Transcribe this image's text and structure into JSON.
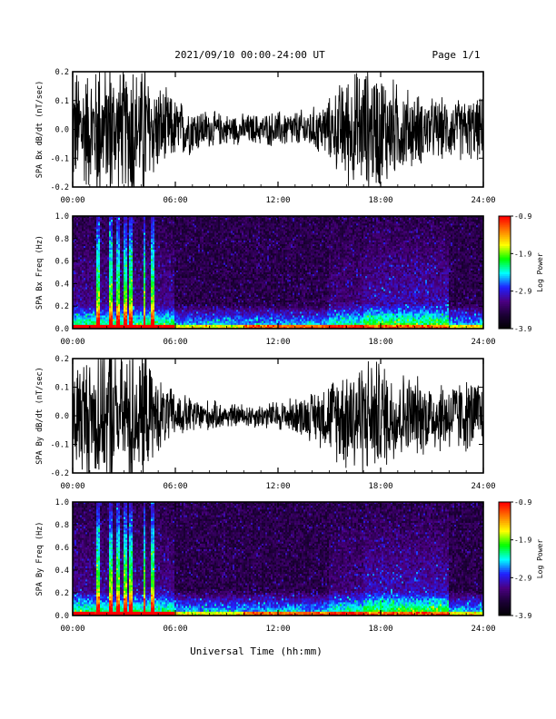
{
  "header": {
    "title": "2021/09/10  00:00-24:00 UT",
    "page": "Page 1/1"
  },
  "footer": {
    "xlabel": "Universal Time (hh:mm)"
  },
  "colors": {
    "trace": "#000000",
    "colormap": [
      "#000000",
      "#1a0033",
      "#4b0082",
      "#2020ff",
      "#00ffff",
      "#00ff00",
      "#ffff00",
      "#ff8000",
      "#ff0000"
    ]
  },
  "chart_data": [
    {
      "type": "line",
      "ylabel": "SPA Bx dB/dt (nT/sec)",
      "xlim": [
        0,
        24
      ],
      "ylim": [
        -0.2,
        0.2
      ],
      "x_tick_labels": [
        "00:00",
        "06:00",
        "12:00",
        "18:00",
        "24:00"
      ],
      "y_tick_labels": [
        "0.2",
        "0.1",
        "0.0",
        "-0.1",
        "-0.2"
      ],
      "series": [
        {
          "x_hours": [
            0,
            1,
            2,
            3,
            3.5,
            4,
            5,
            6,
            7,
            8,
            9,
            10,
            11,
            12,
            13,
            14,
            15,
            16,
            17,
            18,
            19,
            20,
            21,
            22,
            23,
            24
          ],
          "amplitude_envelope": [
            0.2,
            0.2,
            0.2,
            0.2,
            0.2,
            0.2,
            0.15,
            0.1,
            0.08,
            0.06,
            0.05,
            0.05,
            0.05,
            0.06,
            0.06,
            0.07,
            0.1,
            0.18,
            0.2,
            0.2,
            0.15,
            0.12,
            0.1,
            0.1,
            0.1,
            0.1
          ]
        }
      ]
    },
    {
      "type": "heatmap",
      "ylabel": "SPA Bx Freq (Hz)",
      "xlim": [
        0,
        24
      ],
      "ylim": [
        0.0,
        1.0
      ],
      "x_tick_labels": [
        "00:00",
        "06:00",
        "12:00",
        "18:00",
        "24:00"
      ],
      "y_tick_labels": [
        "1.0",
        "0.8",
        "0.6",
        "0.4",
        "0.2",
        "0.0"
      ],
      "colorbar": {
        "label": "Log Power",
        "range": [
          -3.9,
          -0.9
        ],
        "tick_labels": [
          "-0.9",
          "-1.9",
          "-2.9",
          "-3.9"
        ]
      }
    },
    {
      "type": "line",
      "ylabel": "SPA By dB/dt (nT/sec)",
      "xlim": [
        0,
        24
      ],
      "ylim": [
        -0.2,
        0.2
      ],
      "x_tick_labels": [
        "00:00",
        "06:00",
        "12:00",
        "18:00",
        "24:00"
      ],
      "y_tick_labels": [
        "0.2",
        "0.1",
        "0.0",
        "-0.1",
        "-0.2"
      ],
      "series": [
        {
          "x_hours": [
            0,
            1,
            2,
            3,
            3.5,
            4,
            5,
            6,
            7,
            8,
            9,
            10,
            11,
            12,
            13,
            14,
            15,
            16,
            17,
            18,
            19,
            20,
            21,
            22,
            23,
            24
          ],
          "amplitude_envelope": [
            0.2,
            0.2,
            0.2,
            0.2,
            0.2,
            0.2,
            0.12,
            0.08,
            0.06,
            0.05,
            0.04,
            0.04,
            0.04,
            0.05,
            0.06,
            0.08,
            0.12,
            0.18,
            0.2,
            0.18,
            0.15,
            0.13,
            0.12,
            0.12,
            0.12,
            0.12
          ]
        }
      ]
    },
    {
      "type": "heatmap",
      "ylabel": "SPA By Freq (Hz)",
      "xlim": [
        0,
        24
      ],
      "ylim": [
        0.0,
        1.0
      ],
      "x_tick_labels": [
        "00:00",
        "06:00",
        "12:00",
        "18:00",
        "24:00"
      ],
      "y_tick_labels": [
        "1.0",
        "0.8",
        "0.6",
        "0.4",
        "0.2",
        "0.0"
      ],
      "colorbar": {
        "label": "Log Power",
        "range": [
          -3.9,
          -0.9
        ],
        "tick_labels": [
          "-0.9",
          "-1.9",
          "-2.9",
          "-3.9"
        ]
      }
    }
  ]
}
